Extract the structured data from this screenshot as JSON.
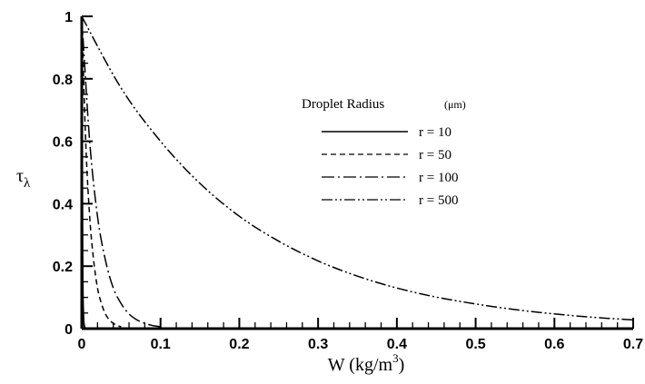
{
  "chart_data": {
    "type": "line",
    "title": "",
    "xlabel": "W (kg/m",
    "xlabel_sup": "3",
    "xlabel_end": ")",
    "ylabel": "τ",
    "ylabel_sub": "λ",
    "xlim": [
      0,
      0.7
    ],
    "ylim": [
      0,
      1
    ],
    "x_ticks": [
      "0",
      "0.1",
      "0.2",
      "0.3",
      "0.4",
      "0.5",
      "0.6",
      "0.7"
    ],
    "y_ticks": [
      "0",
      "0.2",
      "0.4",
      "0.6",
      "0.8",
      "1"
    ],
    "grid": false,
    "legend": {
      "title": "Droplet Radius",
      "unit": "(μm)",
      "placement": "center-right"
    },
    "series": [
      {
        "name": "r = 10",
        "style": "solid",
        "x": [
          0,
          0.001,
          0.002,
          0.003,
          0.004,
          0.005,
          0.006,
          0.007
        ],
        "y": [
          1,
          0.22,
          0.05,
          0.011,
          0.002,
          0,
          0,
          0
        ]
      },
      {
        "name": "r = 50",
        "style": "dashed",
        "x": [
          0,
          0.005,
          0.01,
          0.015,
          0.02,
          0.025,
          0.03,
          0.035,
          0.04,
          0.045,
          0.05
        ],
        "y": [
          1,
          0.6,
          0.36,
          0.22,
          0.13,
          0.08,
          0.047,
          0.028,
          0.017,
          0.01,
          0.006
        ]
      },
      {
        "name": "r = 100",
        "style": "dashdot",
        "x": [
          0,
          0.01,
          0.02,
          0.03,
          0.04,
          0.05,
          0.06,
          0.07,
          0.08,
          0.09,
          0.1
        ],
        "y": [
          1,
          0.6,
          0.36,
          0.22,
          0.13,
          0.08,
          0.047,
          0.028,
          0.017,
          0.01,
          0.006
        ]
      },
      {
        "name": "r = 500",
        "style": "dashdotdot",
        "x": [
          0,
          0.05,
          0.1,
          0.15,
          0.2,
          0.25,
          0.3,
          0.35,
          0.4,
          0.45,
          0.5,
          0.55,
          0.6,
          0.65,
          0.7
        ],
        "y": [
          1,
          0.77,
          0.6,
          0.465,
          0.36,
          0.28,
          0.217,
          0.168,
          0.13,
          0.101,
          0.079,
          0.061,
          0.047,
          0.036,
          0.028
        ]
      }
    ]
  }
}
